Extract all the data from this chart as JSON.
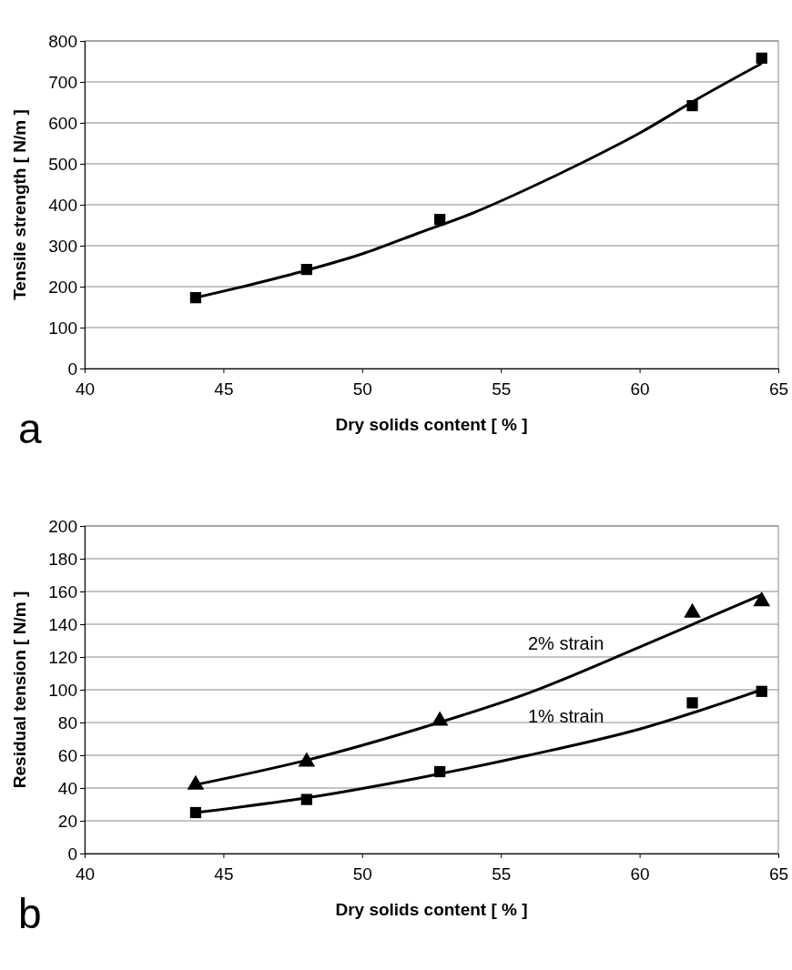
{
  "chart_data": [
    {
      "type": "scatter",
      "xlabel": "Dry solids content [ % ]",
      "ylabel": "Tensile strength [ N/m ]",
      "xlim": [
        40,
        65
      ],
      "xticks": [
        40,
        45,
        50,
        55,
        60,
        65
      ],
      "ylim": [
        0,
        800
      ],
      "yticks": [
        0,
        100,
        200,
        300,
        400,
        500,
        600,
        700,
        800
      ],
      "grid": "y",
      "annotations": [
        "a"
      ],
      "series": [
        {
          "type": "scatter",
          "marker": "square",
          "color": "#000000",
          "x": [
            44.0,
            48.0,
            52.8,
            61.9,
            64.4
          ],
          "values": [
            173,
            242,
            364,
            642,
            758
          ]
        },
        {
          "type": "line",
          "marker": "none",
          "line_style": "solid",
          "color": "#000000",
          "x": [
            44,
            46,
            48,
            50,
            52,
            54,
            56,
            58,
            60,
            62,
            64.4
          ],
          "values": [
            173,
            205,
            240,
            280,
            330,
            380,
            440,
            505,
            575,
            655,
            745
          ]
        }
      ]
    },
    {
      "type": "scatter",
      "xlabel": "Dry solids content [ % ]",
      "ylabel": "Residual tension [ N/m ]",
      "xlim": [
        40,
        65
      ],
      "xticks": [
        40,
        45,
        50,
        55,
        60,
        65
      ],
      "ylim": [
        0,
        200
      ],
      "yticks": [
        0,
        20,
        40,
        60,
        80,
        100,
        120,
        140,
        160,
        180,
        200
      ],
      "grid": "y",
      "annotations": [
        "b"
      ],
      "series": [
        {
          "type": "scatter",
          "marker": "triangle",
          "color": "#000000",
          "x": [
            44.0,
            48.0,
            52.8,
            61.9,
            64.4
          ],
          "values": [
            42,
            56,
            81,
            147,
            154
          ]
        },
        {
          "type": "line",
          "name": "2% strain",
          "marker": "none",
          "line_style": "solid",
          "color": "#000000",
          "x": [
            44,
            48,
            52,
            56,
            60,
            64.4
          ],
          "values": [
            42,
            57,
            76,
            98,
            126,
            158
          ]
        },
        {
          "type": "scatter",
          "marker": "square",
          "color": "#000000",
          "x": [
            44.0,
            48.0,
            52.8,
            61.9,
            64.4
          ],
          "values": [
            25,
            33,
            50,
            92,
            99
          ]
        },
        {
          "type": "line",
          "name": "1% strain",
          "marker": "none",
          "line_style": "solid",
          "color": "#000000",
          "x": [
            44,
            48,
            52,
            56,
            60,
            64.4
          ],
          "values": [
            25,
            34,
            46,
            60,
            76,
            100
          ]
        }
      ]
    }
  ]
}
